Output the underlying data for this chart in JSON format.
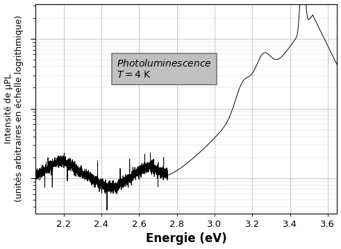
{
  "xlabel": "Energie (eV)",
  "ylabel": "Intensité de μPL\n(unités arbitraires en échelle logrithmique)",
  "annotation_line1": "Photoluminescence",
  "annotation_line2": "T = 4 K",
  "annotation_box_color": "#c0c0c0",
  "xlim": [
    2.05,
    3.65
  ],
  "xticks": [
    2.2,
    2.4,
    2.6,
    2.8,
    3.0,
    3.2,
    3.4,
    3.6
  ],
  "grid_color": "#b0b0b0",
  "background_color": "#ffffff",
  "line_color": "#000000",
  "xlabel_fontsize": 12,
  "ylabel_fontsize": 9,
  "annotation_fontsize": 10,
  "ylim_log": [
    0.5,
    3.5
  ]
}
